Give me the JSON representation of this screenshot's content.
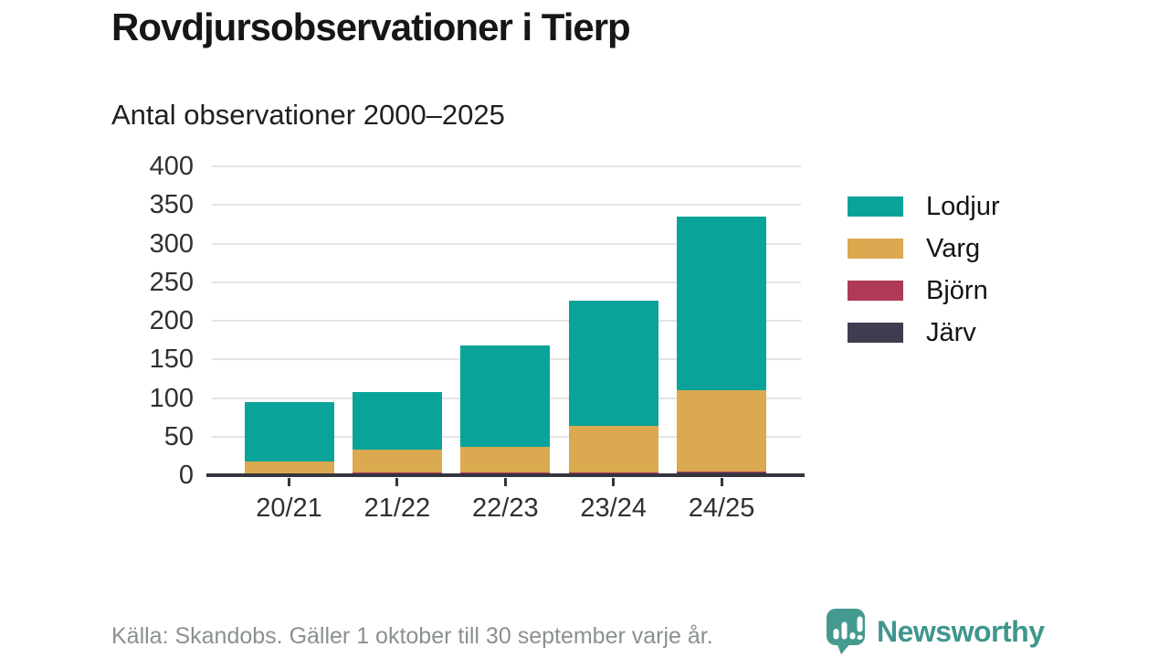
{
  "header": {
    "title": "Rovdjursobservationer i Tierp",
    "subtitle": "Antal observationer 2000–2025"
  },
  "footer": {
    "source_note": "Källa: Skandobs. Gäller 1 oktober till 30 september varje år.",
    "brand_name": "Newsworthy"
  },
  "icons": {
    "logo": "newsworthy-speech-bubble-bar-chart-icon"
  },
  "colors": {
    "lodjur": "#0aa39a",
    "varg": "#dba950",
    "bjorn": "#ae3a58",
    "jarv": "#3f3d4f",
    "axis": "#35353f",
    "grid": "#e4e4e4",
    "brand_teal": "#3f968d"
  },
  "chart_data": {
    "type": "bar",
    "stacked": true,
    "title": "Rovdjursobservationer i Tierp",
    "subtitle": "Antal observationer 2000–2025",
    "categories": [
      "20/21",
      "21/22",
      "22/23",
      "23/24",
      "24/25"
    ],
    "series": [
      {
        "name": "Lodjur",
        "color": "#0aa39a",
        "values": [
          77,
          75,
          131,
          162,
          225
        ]
      },
      {
        "name": "Varg",
        "color": "#dba950",
        "values": [
          17,
          30,
          34,
          60,
          105
        ]
      },
      {
        "name": "Björn",
        "color": "#ae3a58",
        "values": [
          1,
          2,
          2,
          2,
          2
        ]
      },
      {
        "name": "Järv",
        "color": "#3f3d4f",
        "values": [
          0,
          1,
          1,
          2,
          3
        ]
      }
    ],
    "stack_order_bottom_to_top": [
      "Järv",
      "Björn",
      "Varg",
      "Lodjur"
    ],
    "totals": [
      95,
      108,
      168,
      226,
      335
    ],
    "xlabel": "",
    "ylabel": "",
    "ylim": [
      0,
      400
    ],
    "yticks": [
      0,
      50,
      100,
      150,
      200,
      250,
      300,
      350,
      400
    ],
    "grid": "horizontal",
    "legend_position": "right"
  }
}
